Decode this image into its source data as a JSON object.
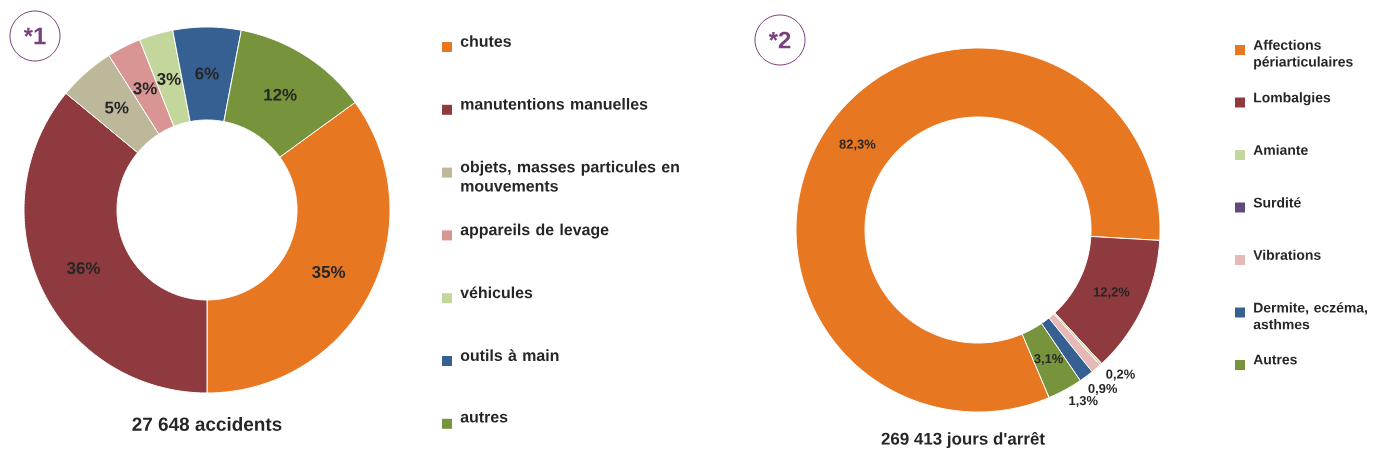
{
  "chart_data": [
    {
      "type": "donut",
      "title": "27 648 accidents",
      "annotations": [
        "*1"
      ],
      "categories": [
        "chutes",
        "manutentions manuelles",
        "objets, masses particules en mouvements",
        "appareils de levage",
        "véhicules",
        "outils à main",
        "autres"
      ],
      "values": [
        35,
        36,
        5,
        3,
        3,
        6,
        12
      ],
      "value_labels": [
        "35%",
        "36%",
        "5%",
        "3%",
        "3%",
        "6%",
        "12%"
      ],
      "colors": [
        "#e87722",
        "#8e3a3e",
        "#bdb89a",
        "#d99594",
        "#c3d69b",
        "#376092",
        "#77933c"
      ],
      "legend": "right"
    },
    {
      "type": "donut",
      "title": "269 413 jours d'arrêt",
      "annotations": [
        "*2"
      ],
      "categories": [
        "Affections périarticulaires",
        "Lombalgies",
        "Amiante",
        "Surdité",
        "Vibrations",
        "Dermite, eczéma, asthmes",
        "Autres"
      ],
      "values": [
        82.3,
        12.2,
        0.2,
        0,
        0.9,
        1.3,
        3.1
      ],
      "value_labels": [
        "82,3%",
        "12,2%",
        "0,2%",
        null,
        "0,9%",
        "1,3%",
        "3,1%"
      ],
      "colors": [
        "#e87722",
        "#8e3a3e",
        "#c3d69b",
        "#604a7b",
        "#e6b9b8",
        "#376092",
        "#77933c"
      ],
      "legend": "right"
    }
  ]
}
